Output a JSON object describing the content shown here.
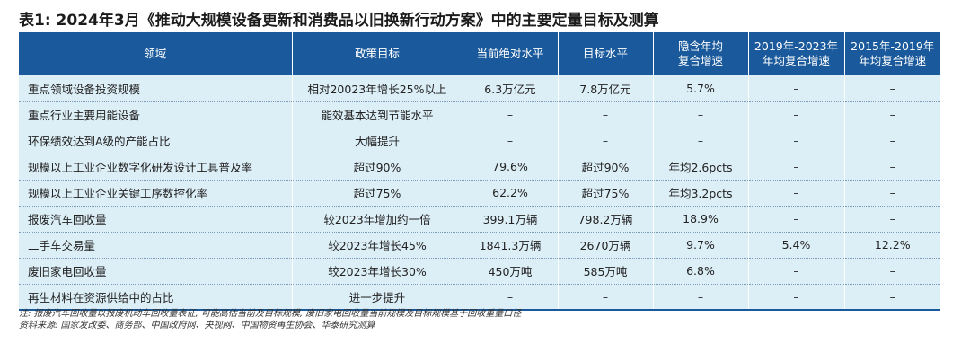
{
  "title": "表1: 2024年3月《推动大规模设备更新和消费品以旧换新行动方案》中的主要定量目标及测算",
  "table": {
    "headers": [
      {
        "line1": "领域",
        "line2": ""
      },
      {
        "line1": "政策目标",
        "line2": ""
      },
      {
        "line1": "当前绝对水平",
        "line2": ""
      },
      {
        "line1": "目标水平",
        "line2": ""
      },
      {
        "line1": "隐含年均",
        "line2": "复合增速"
      },
      {
        "line1": "2019年-2023年",
        "line2": "年均复合增速"
      },
      {
        "line1": "2015年-2019年",
        "line2": "年均复合增速"
      }
    ],
    "rows": [
      [
        "重点领域设备投资规模",
        "相对20023年增长25%以上",
        "6.3万亿元",
        "7.8万亿元",
        "5.7%",
        "–",
        "–"
      ],
      [
        "重点行业主要用能设备",
        "能效基本达到节能水平",
        "–",
        "–",
        "–",
        "–",
        "–"
      ],
      [
        "环保绩效达到A级的产能占比",
        "大幅提升",
        "–",
        "–",
        "–",
        "–",
        "–"
      ],
      [
        "规模以上工业企业数字化研发设计工具普及率",
        "超过90%",
        "79.6%",
        "超过90%",
        "年均2.6pcts",
        "–",
        "–"
      ],
      [
        "规模以上工业企业关键工序数控化率",
        "超过75%",
        "62.2%",
        "超过75%",
        "年均3.2pcts",
        "–",
        "–"
      ],
      [
        "报废汽车回收量",
        "较2023年增加约一倍",
        "399.1万辆",
        "798.2万辆",
        "18.9%",
        "–",
        "–"
      ],
      [
        "二手车交易量",
        "较2023年增长45%",
        "1841.3万辆",
        "2670万辆",
        "9.7%",
        "5.4%",
        "12.2%"
      ],
      [
        "废旧家电回收量",
        "较2023年增长30%",
        "450万吨",
        "585万吨",
        "6.8%",
        "–",
        "–"
      ],
      [
        "再生材料在资源供给中的占比",
        "进一步提升",
        "–",
        "–",
        "–",
        "–",
        "–"
      ]
    ]
  },
  "notes": {
    "note": "注: 报废汽车回收量以报废机动车回收量表征, 可能高估当前及目标规模, 废旧家电回收量当前规模及目标规模基于回收重量口径",
    "source": "资料来源: 国家发改委、商务部、中国政府网、央视网、中国物资再生协会、华泰研究测算"
  }
}
